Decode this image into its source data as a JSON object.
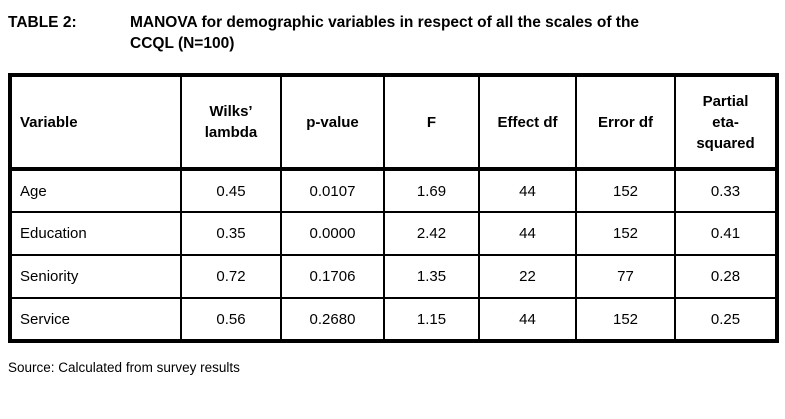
{
  "caption": {
    "label": "TABLE 2:",
    "line1": "MANOVA for demographic variables in respect of all the scales of the",
    "line2": "CCQL (N=100)"
  },
  "table": {
    "columns": [
      "Variable",
      "Wilks’\nlambda",
      "p-value",
      "F",
      "Effect df",
      "Error df",
      "Partial\neta-\nsquared"
    ],
    "rows": [
      [
        "Age",
        "0.45",
        "0.0107",
        "1.69",
        "44",
        "152",
        "0.33"
      ],
      [
        "Education",
        "0.35",
        "0.0000",
        "2.42",
        "44",
        "152",
        "0.41"
      ],
      [
        "Seniority",
        "0.72",
        "0.1706",
        "1.35",
        "22",
        "77",
        "0.28"
      ],
      [
        "Service",
        "0.56",
        "0.2680",
        "1.15",
        "44",
        "152",
        "0.25"
      ]
    ]
  },
  "source": "Source: Calculated from survey results",
  "colors": {
    "text": "#000000",
    "background": "#ffffff",
    "border": "#000000"
  },
  "chart_data": {
    "type": "table",
    "title": "TABLE 2: MANOVA for demographic variables in respect of all the scales of the CCQL (N=100)",
    "columns": [
      "Variable",
      "Wilks' lambda",
      "p-value",
      "F",
      "Effect df",
      "Error df",
      "Partial eta-squared"
    ],
    "rows": [
      [
        "Age",
        0.45,
        0.0107,
        1.69,
        44,
        152,
        0.33
      ],
      [
        "Education",
        0.35,
        0.0,
        2.42,
        44,
        152,
        0.41
      ],
      [
        "Seniority",
        0.72,
        0.1706,
        1.35,
        22,
        77,
        0.28
      ],
      [
        "Service",
        0.56,
        0.268,
        1.15,
        44,
        152,
        0.25
      ]
    ],
    "source": "Source: Calculated from survey results"
  }
}
